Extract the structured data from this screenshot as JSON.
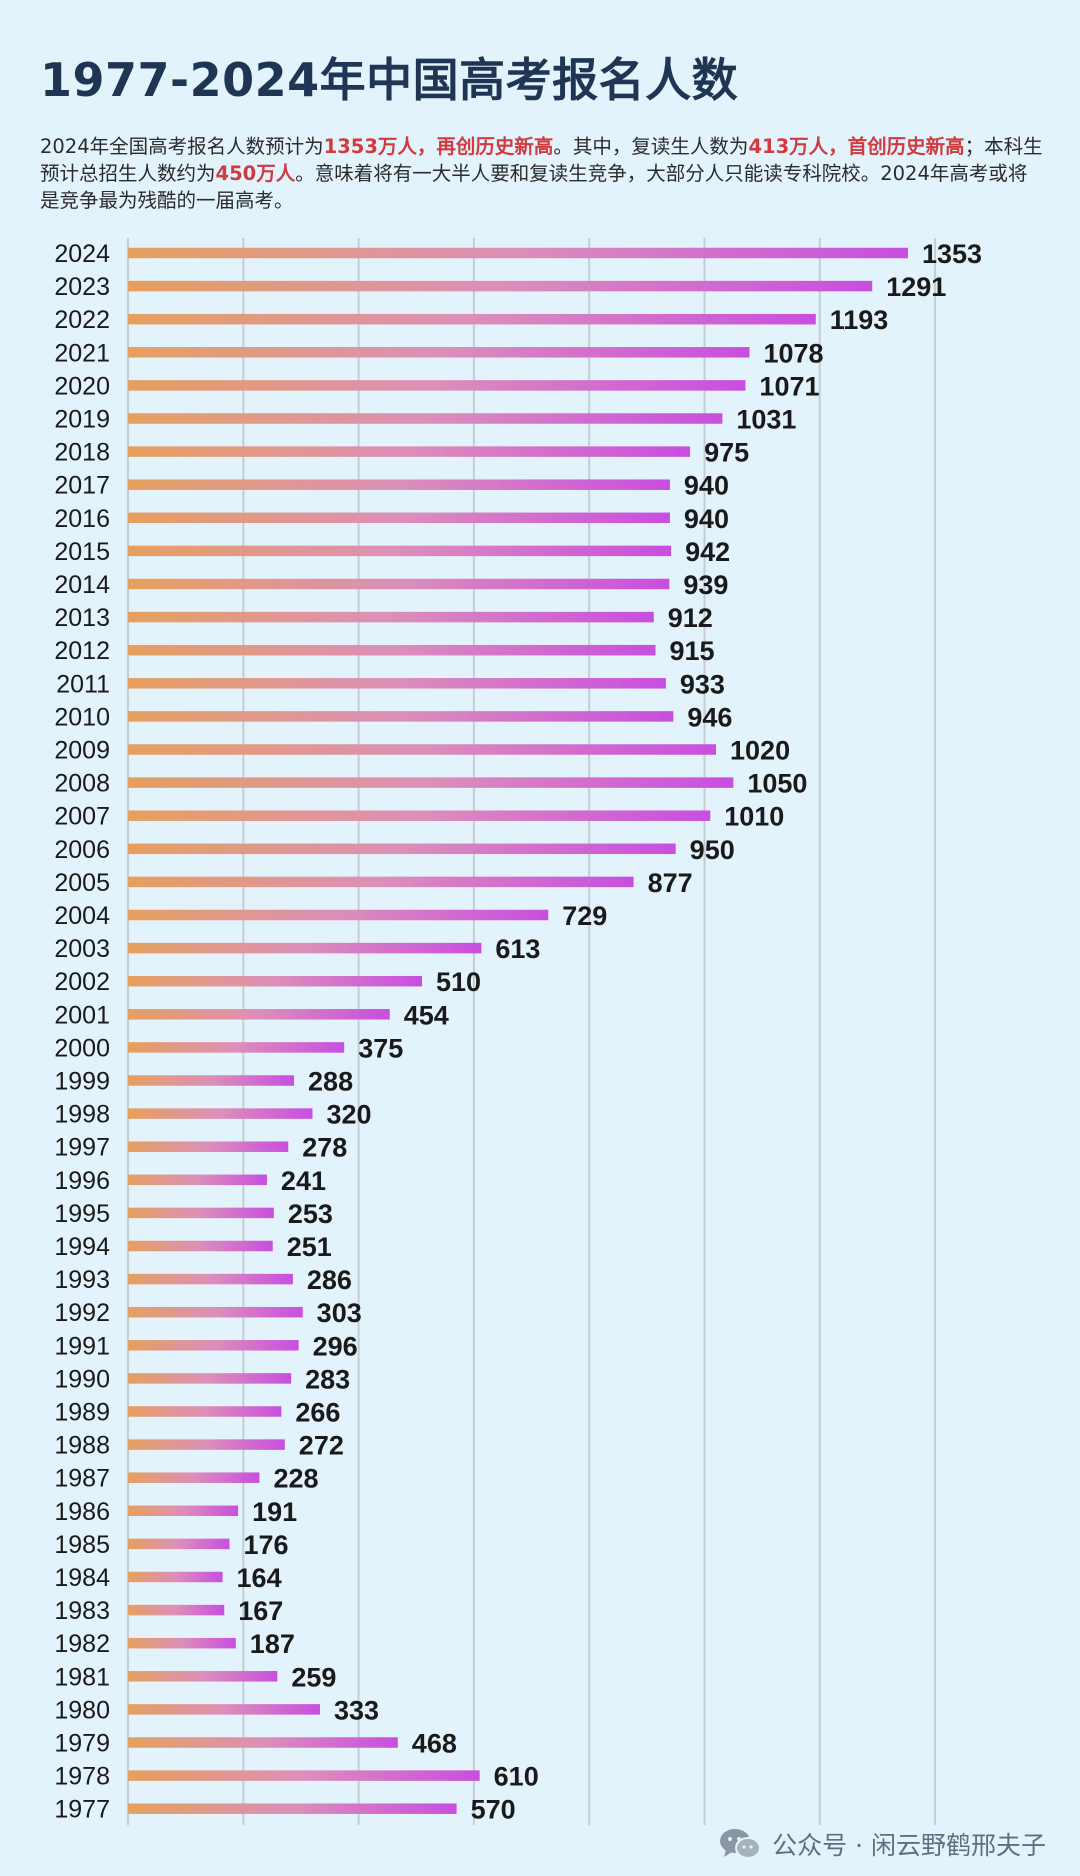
{
  "header": {
    "title": "1977-2024年中国高考报名人数",
    "subtitle_parts": [
      {
        "text": "2024年全国高考报名人数预计为",
        "highlight": false
      },
      {
        "text": "1353万人，再创历史新高",
        "highlight": true
      },
      {
        "text": "。其中，复读生人数为",
        "highlight": false
      },
      {
        "text": "413万人，首创历史新高",
        "highlight": true
      },
      {
        "text": "；本科生预计总招生人数约为",
        "highlight": false
      },
      {
        "text": "450万人",
        "highlight": true
      },
      {
        "text": "。意味着将有一大半人要和复读生竞争，大部分人只能读专科院校。2024年高考或将是竞争最为残酷的一届高考。",
        "highlight": false
      }
    ]
  },
  "watermark": {
    "text": "公众号 · 闲云野鹤邢夫子",
    "icon": "wechat-icon"
  },
  "colors": {
    "background": "#e3f3fc",
    "bar_start": "#e5a05e",
    "bar_mid": "#dc8fb9",
    "bar_end": "#c84ee0",
    "grid": "#c6ccd3",
    "highlight_text": "#d03b3f",
    "title": "#1e3553"
  },
  "chart_data": {
    "type": "bar",
    "orientation": "horizontal",
    "title": "1977-2024年中国高考报名人数",
    "unit": "万人",
    "xlim": [
      0,
      1400
    ],
    "grid": true,
    "show_value_labels": true,
    "categories": [
      "2024",
      "2023",
      "2022",
      "2021",
      "2020",
      "2019",
      "2018",
      "2017",
      "2016",
      "2015",
      "2014",
      "2013",
      "2012",
      "2011",
      "2010",
      "2009",
      "2008",
      "2007",
      "2006",
      "2005",
      "2004",
      "2003",
      "2002",
      "2001",
      "2000",
      "1999",
      "1998",
      "1997",
      "1996",
      "1995",
      "1994",
      "1993",
      "1992",
      "1991",
      "1990",
      "1989",
      "1988",
      "1987",
      "1986",
      "1985",
      "1984",
      "1983",
      "1982",
      "1981",
      "1980",
      "1979",
      "1978",
      "1977"
    ],
    "values": [
      1353,
      1291,
      1193,
      1078,
      1071,
      1031,
      975,
      940,
      940,
      942,
      939,
      912,
      915,
      933,
      946,
      1020,
      1050,
      1010,
      950,
      877,
      729,
      613,
      510,
      454,
      375,
      288,
      320,
      278,
      241,
      253,
      251,
      286,
      303,
      296,
      283,
      266,
      272,
      228,
      191,
      176,
      164,
      167,
      187,
      259,
      333,
      468,
      610,
      570
    ]
  }
}
